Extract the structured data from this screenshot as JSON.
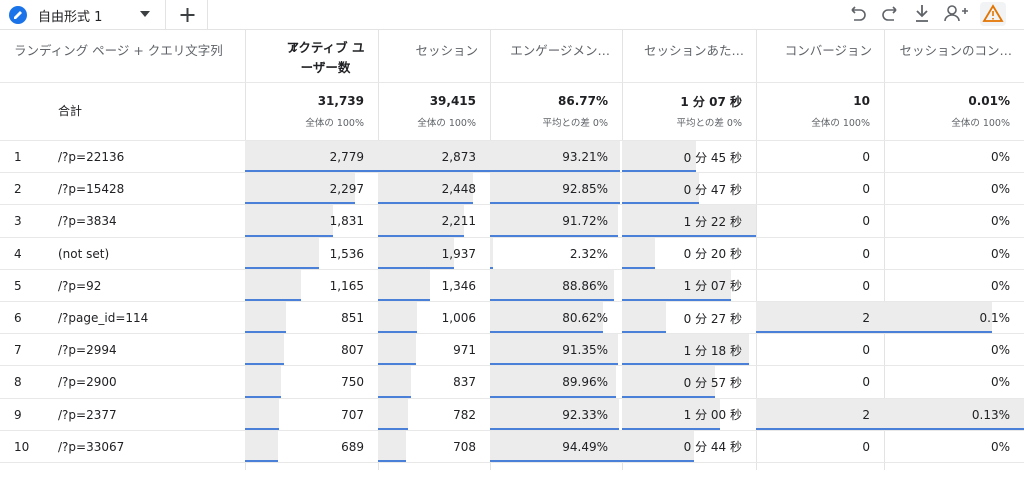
{
  "toolbar": {
    "tab": "自由形式 1"
  },
  "table": {
    "dimension": "ランディング ページ + クエリ文字列",
    "headers": [
      "アクティブ ユーザー数",
      "セッション",
      "エンゲージメン…",
      "セッションあた…",
      "コンバージョン",
      "セッションのコン…"
    ],
    "totals": {
      "label": "合計",
      "values": [
        {
          "value": "31,739",
          "note": "全体の 100%"
        },
        {
          "value": "39,415",
          "note": "全体の 100%"
        },
        {
          "value": "86.77%",
          "note": "平均との差 0%"
        },
        {
          "value": "1 分 07 秒",
          "note": "平均との差 0%"
        },
        {
          "value": "10",
          "note": "全体の 100%"
        },
        {
          "value": "0.01%",
          "note": "全体の 100%"
        }
      ]
    },
    "rows": [
      {
        "index": "1",
        "label": "/?p=22136",
        "cells": [
          "2,779",
          "2,873",
          "93.21%",
          "0 分 45 秒",
          "0",
          "0%"
        ]
      },
      {
        "index": "2",
        "label": "/?p=15428",
        "cells": [
          "2,297",
          "2,448",
          "92.85%",
          "0 分 47 秒",
          "0",
          "0%"
        ]
      },
      {
        "index": "3",
        "label": "/?p=3834",
        "cells": [
          "1,831",
          "2,211",
          "91.72%",
          "1 分 22 秒",
          "0",
          "0%"
        ]
      },
      {
        "index": "4",
        "label": "(not set)",
        "cells": [
          "1,536",
          "1,937",
          "2.32%",
          "0 分 20 秒",
          "0",
          "0%"
        ]
      },
      {
        "index": "5",
        "label": "/?p=92",
        "cells": [
          "1,165",
          "1,346",
          "88.86%",
          "1 分 07 秒",
          "0",
          "0%"
        ]
      },
      {
        "index": "6",
        "label": "/?page_id=114",
        "cells": [
          "851",
          "1,006",
          "80.62%",
          "0 分 27 秒",
          "2",
          "0.1%"
        ]
      },
      {
        "index": "7",
        "label": "/?p=2994",
        "cells": [
          "807",
          "971",
          "91.35%",
          "1 分 18 秒",
          "0",
          "0%"
        ]
      },
      {
        "index": "8",
        "label": "/?p=2900",
        "cells": [
          "750",
          "837",
          "89.96%",
          "0 分 57 秒",
          "0",
          "0%"
        ]
      },
      {
        "index": "9",
        "label": "/?p=2377",
        "cells": [
          "707",
          "782",
          "92.33%",
          "1 分 00 秒",
          "2",
          "0.13%"
        ]
      },
      {
        "index": "10",
        "label": "/?p=33067",
        "cells": [
          "689",
          "708",
          "94.49%",
          "0 分 44 秒",
          "0",
          "0%"
        ]
      }
    ]
  }
}
